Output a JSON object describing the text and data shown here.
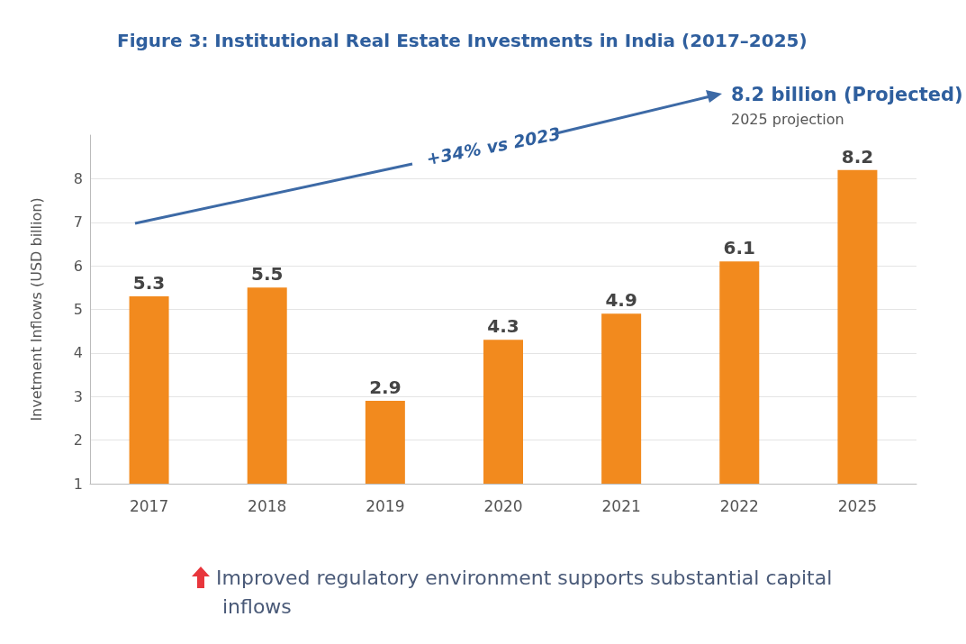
{
  "chart_data": {
    "type": "bar",
    "title": "Figure 3: Institutional Real Estate Investments in India (2017–2025)",
    "ylabel": "Invetment Inflows (USD billion)",
    "categories": [
      "2017",
      "2018",
      "2019",
      "2020",
      "2021",
      "2022",
      "2025"
    ],
    "values": [
      5.3,
      5.5,
      2.9,
      4.3,
      4.9,
      6.1,
      8.2
    ],
    "color": "#f28a1e",
    "ylim": [
      1,
      9
    ],
    "yticks": [
      1,
      2,
      3,
      4,
      5,
      6,
      7,
      8
    ],
    "grid": "y",
    "data_labels": true,
    "annotations": [
      "+34% vs 2023",
      "8.2 billion (Projected)",
      "2025 projection",
      "Improved regulatory environment supports substantial capital inflows"
    ]
  }
}
